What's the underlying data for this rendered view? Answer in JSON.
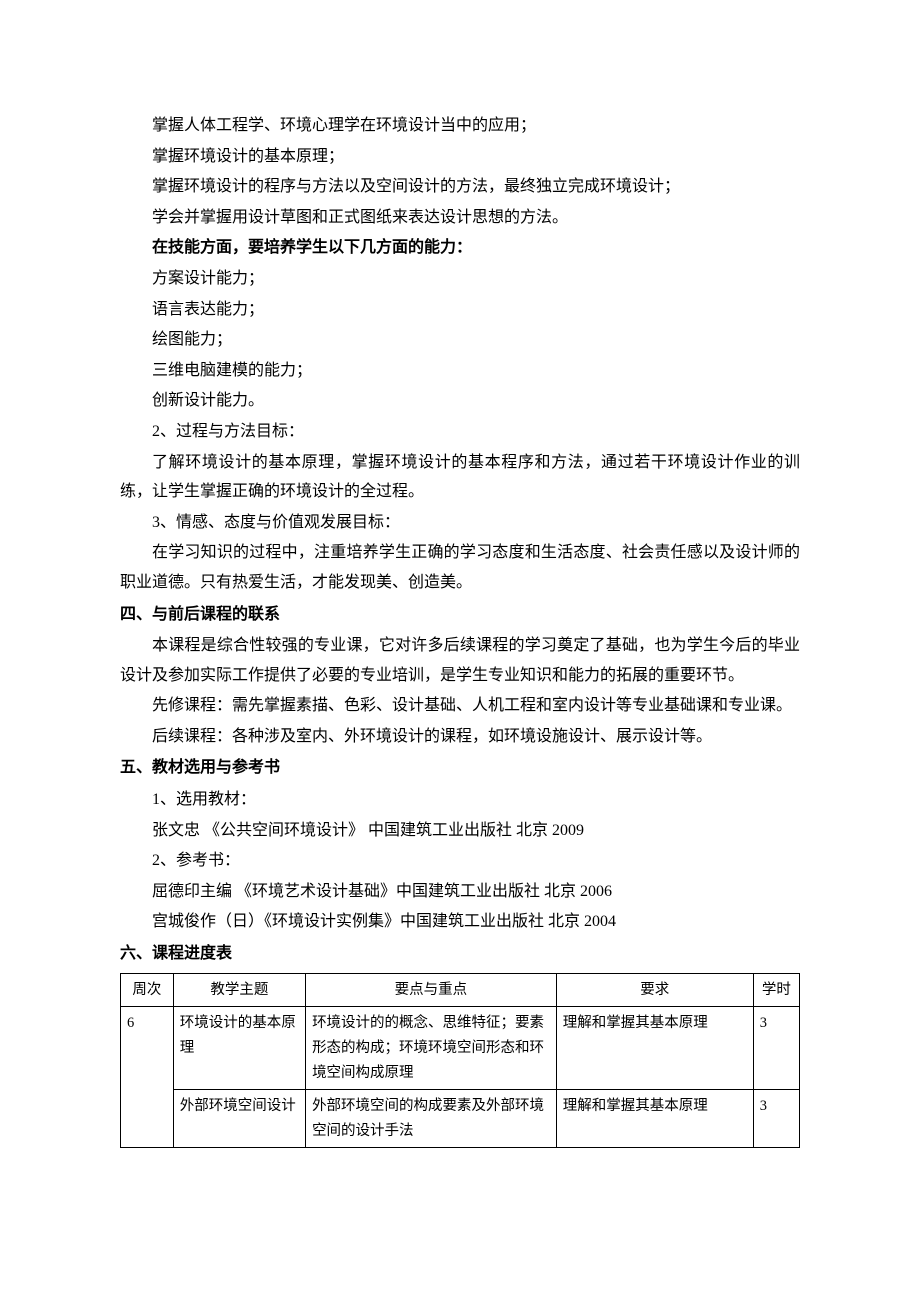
{
  "body": {
    "lines_indented": [
      "掌握人体工程学、环境心理学在环境设计当中的应用；",
      "掌握环境设计的基本原理；",
      "掌握环境设计的程序与方法以及空间设计的方法，最终独立完成环境设计；",
      "学会并掌握用设计草图和正式图纸来表达设计思想的方法。"
    ],
    "skills_heading": "在技能方面，要培养学生以下几方面的能力：",
    "skills": [
      "方案设计能力；",
      "语言表达能力；",
      "绘图能力；",
      "三维电脑建模的能力；",
      "创新设计能力。"
    ],
    "goal2_title": "2、过程与方法目标：",
    "goal2_text": "了解环境设计的基本原理，掌握环境设计的基本程序和方法，通过若干环境设计作业的训练，让学生掌握正确的环境设计的全过程。",
    "goal3_title": "3、情感、态度与价值观发展目标：",
    "goal3_text": "在学习知识的过程中，注重培养学生正确的学习态度和生活态度、社会责任感以及设计师的职业道德。只有热爱生活，才能发现美、创造美。"
  },
  "section4": {
    "heading": "四、与前后课程的联系",
    "p1": "本课程是综合性较强的专业课，它对许多后续课程的学习奠定了基础，也为学生今后的毕业设计及参加实际工作提供了必要的专业培训，是学生专业知识和能力的拓展的重要环节。",
    "p2": "先修课程：需先掌握素描、色彩、设计基础、人机工程和室内设计等专业基础课和专业课。",
    "p3": "后续课程：各种涉及室内、外环境设计的课程，如环境设施设计、展示设计等。"
  },
  "section5": {
    "heading": "五、教材选用与参考书",
    "l1": "1、选用教材：",
    "l2": "张文忠  《公共空间环境设计》  中国建筑工业出版社  北京  2009",
    "l3": "2、参考书：",
    "l4": "屈德印主编  《环境艺术设计基础》中国建筑工业出版社  北京  2006",
    "l5": "宫城俊作（日）《环境设计实例集》中国建筑工业出版社  北京  2004"
  },
  "section6": {
    "heading": "六、课程进度表",
    "columns": [
      "周次",
      "教学主题",
      "要点与重点",
      "要求",
      "学时"
    ],
    "rows": [
      {
        "week": "6",
        "topic": "环境设计的基本原理",
        "points": "环境设计的的概念、思维特征；要素形态的构成；环境环境空间形态和环境空间构成原理",
        "req": "理解和掌握其基本原理",
        "hours": "3"
      },
      {
        "week": "",
        "topic": "外部环境空间设计",
        "points": "外部环境空间的构成要素及外部环境空间的设计手法",
        "req": "理解和掌握其基本原理",
        "hours": "3"
      }
    ]
  }
}
